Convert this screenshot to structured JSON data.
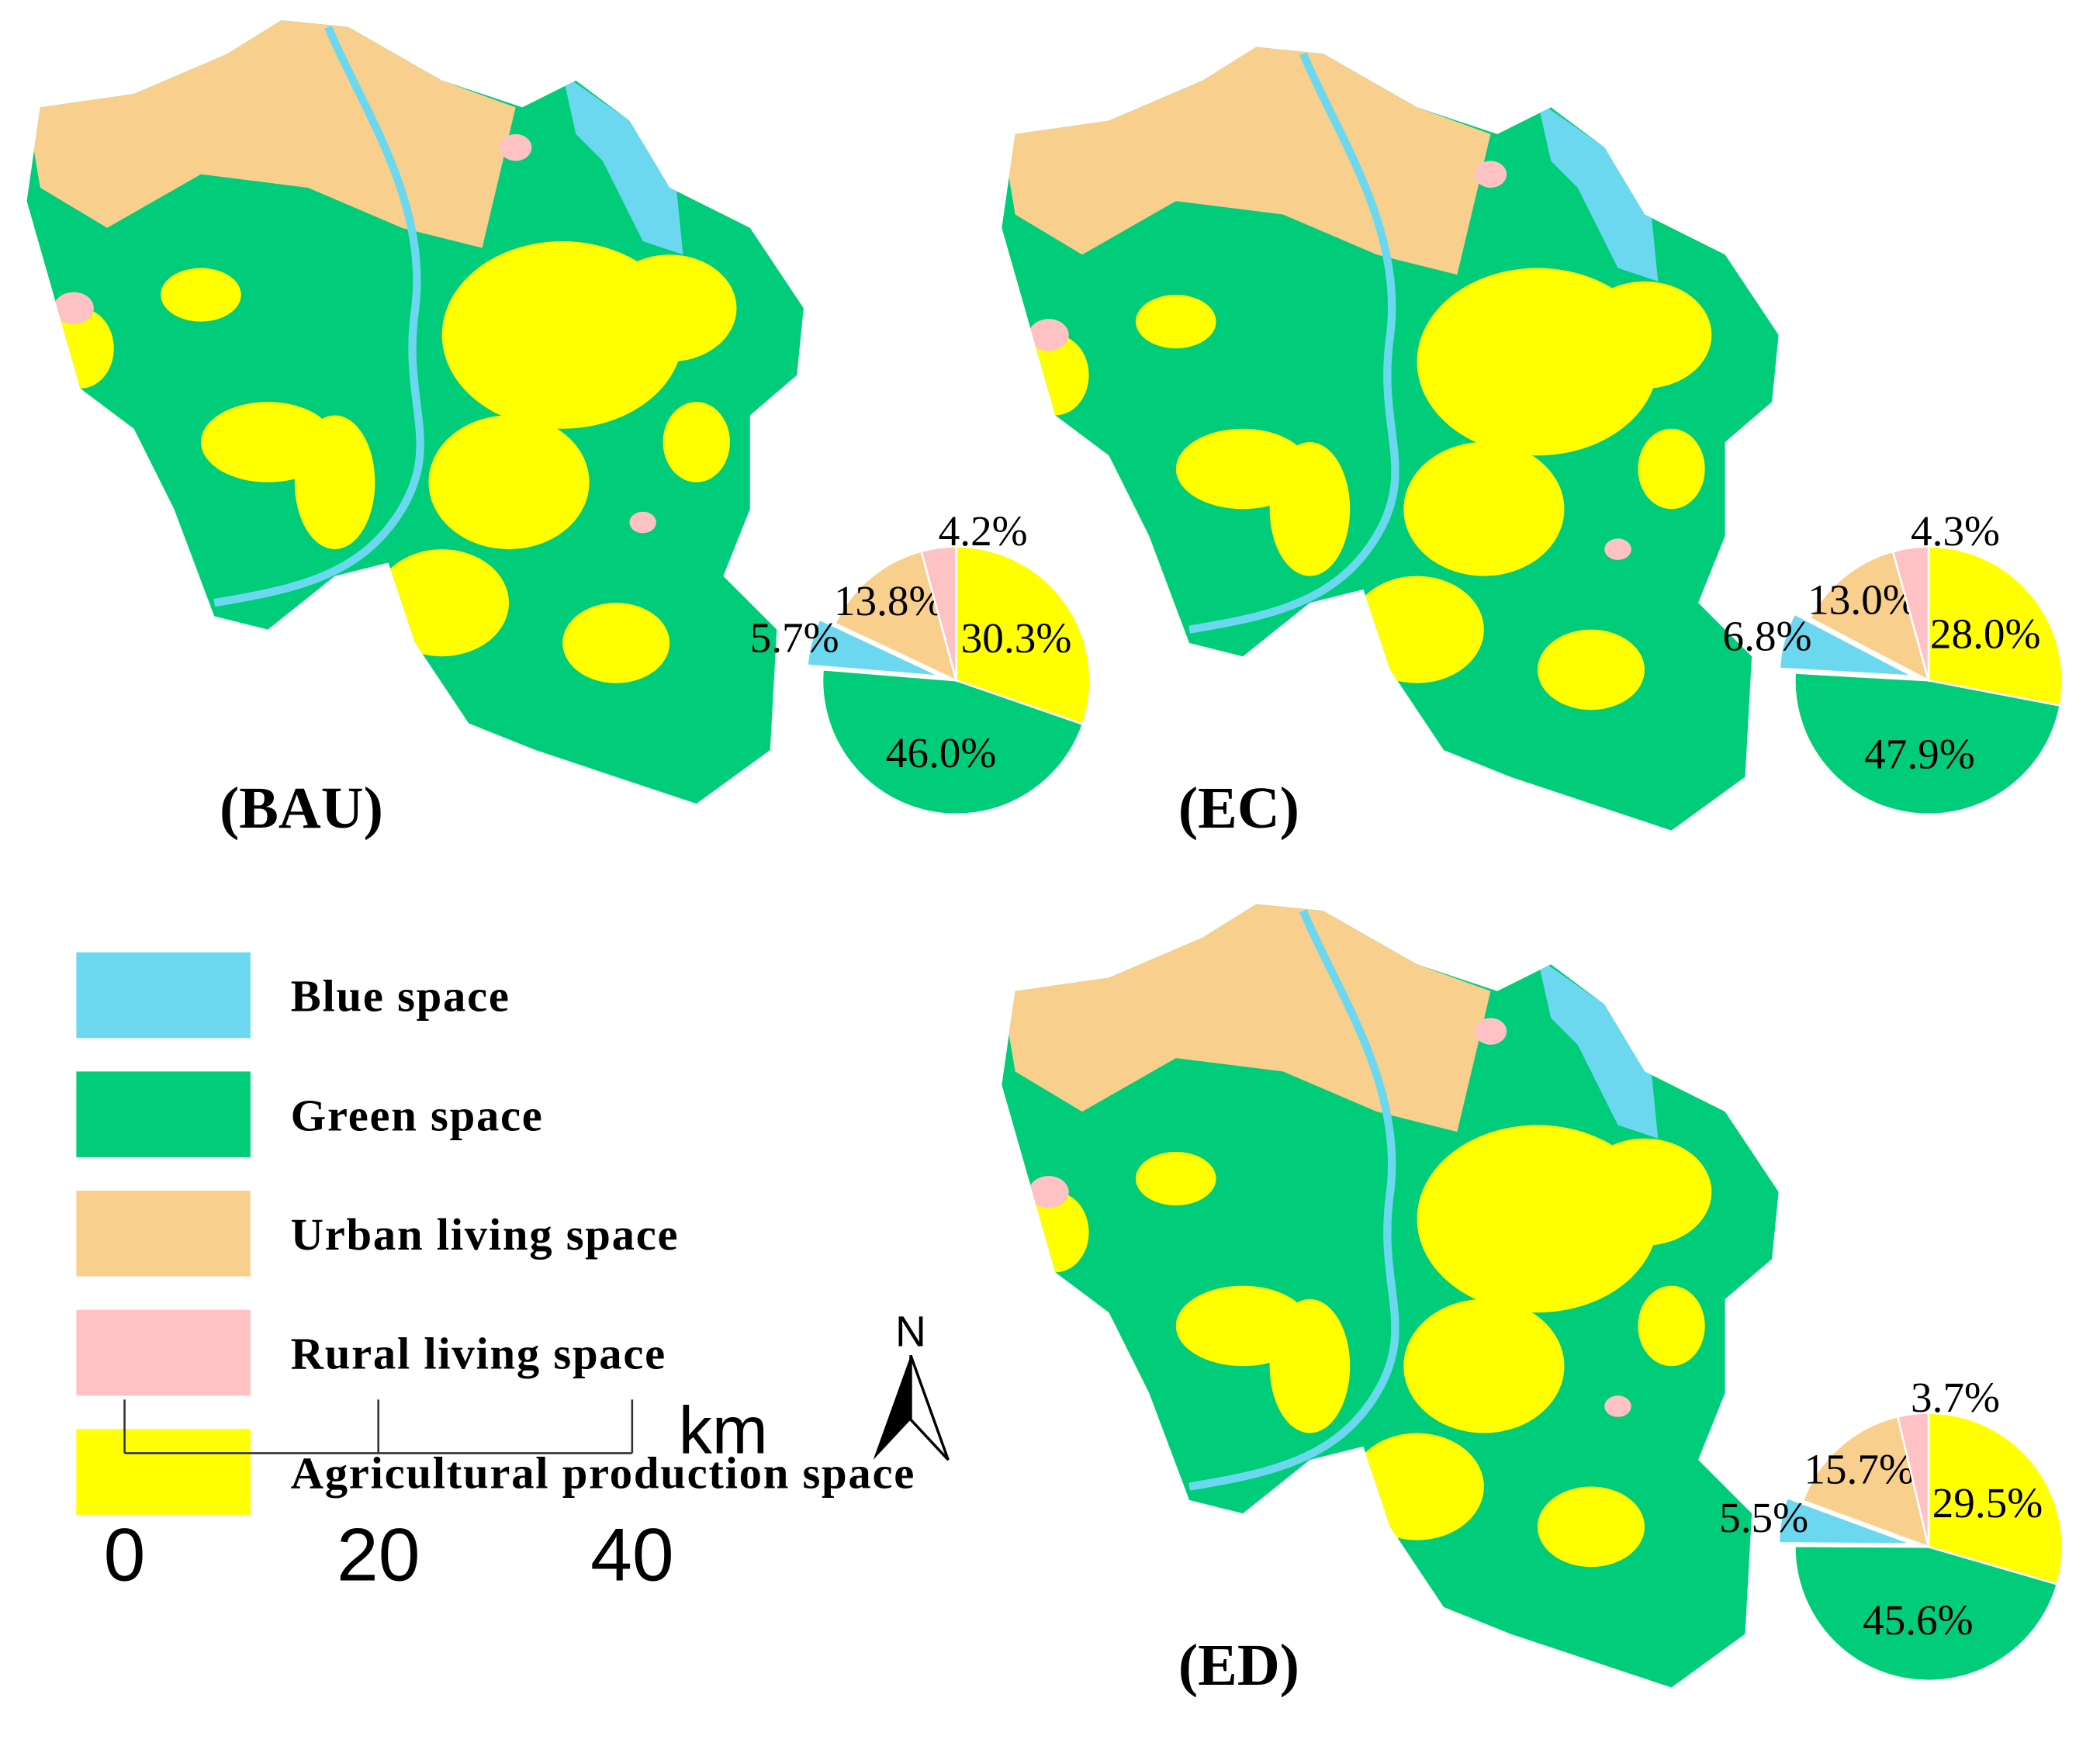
{
  "chart_data": [
    {
      "type": "pie",
      "title": "(BAU)",
      "categories": [
        "Blue space",
        "Green space",
        "Urban living space",
        "Rural living space",
        "Agricultural production space"
      ],
      "colors": [
        "#6cd8f0",
        "#00cc7a",
        "#f9cf8e",
        "#ffc2c4",
        "#ffff00"
      ],
      "values": [
        5.7,
        46.0,
        13.8,
        4.2,
        30.3
      ],
      "value_labels": [
        "5.7%",
        "46.0%",
        "13.8%",
        "4.2%",
        "30.3%"
      ]
    },
    {
      "type": "pie",
      "title": "(EC)",
      "values": [
        6.8,
        47.9,
        13.0,
        4.3,
        28.0
      ],
      "value_labels": [
        "6.8%",
        "47.9%",
        "13.0%",
        "4.3%",
        "28.0%"
      ]
    },
    {
      "type": "pie",
      "title": "(ED)",
      "values": [
        5.5,
        45.6,
        15.7,
        3.7,
        29.5
      ],
      "value_labels": [
        "5.5%",
        "45.6%",
        "15.7%",
        "3.7%",
        "29.5%"
      ]
    }
  ],
  "scale_bar": {
    "ticks": [
      0,
      20,
      40
    ],
    "unit": "km"
  },
  "north": "N"
}
